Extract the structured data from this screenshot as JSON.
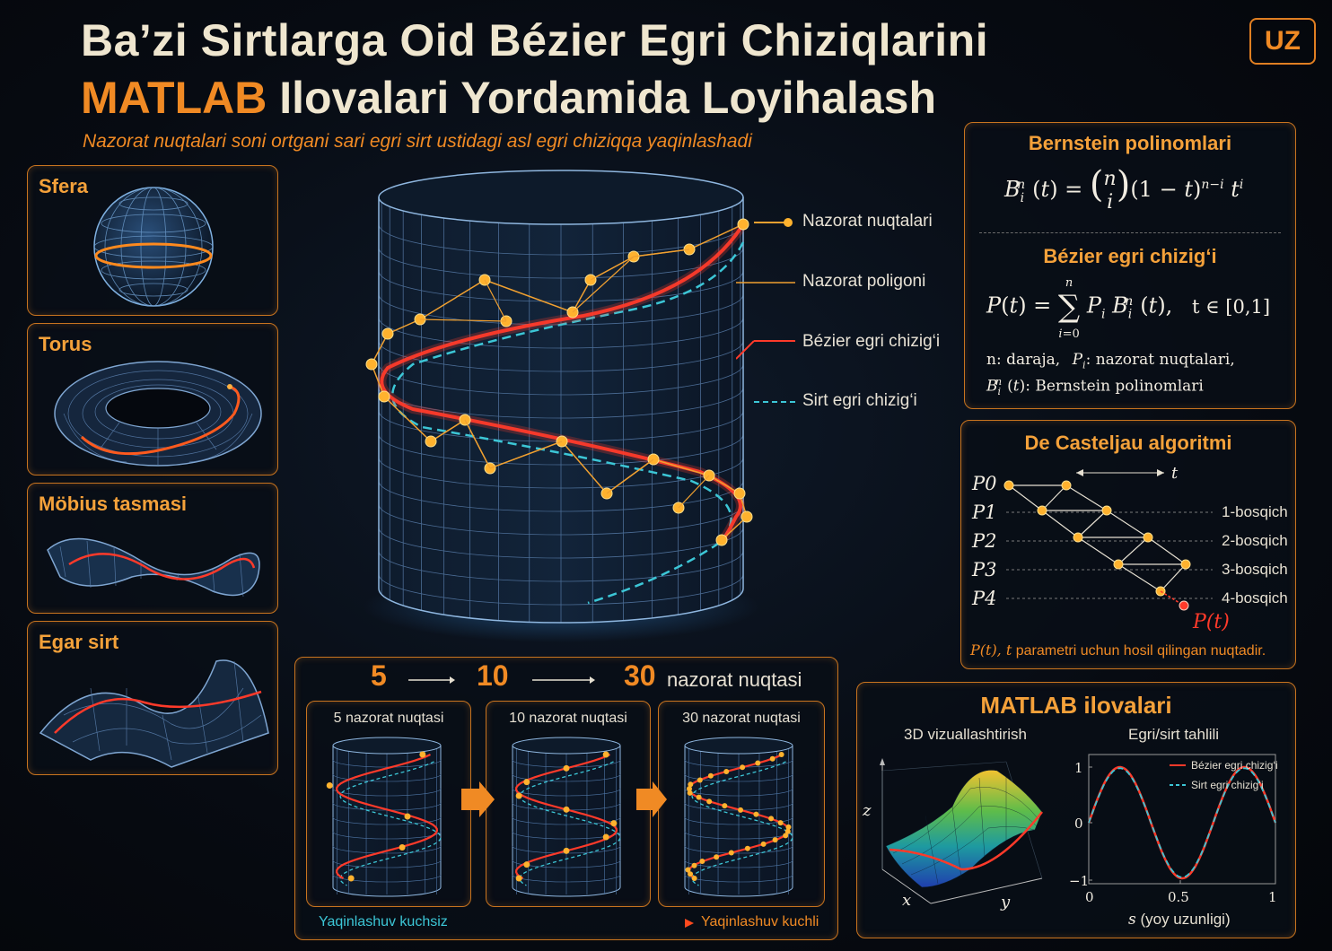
{
  "header": {
    "title_line1": "Ba’zi Sirtlarga Oid Bézier Egri Chiziqlarini",
    "title_line2_highlight": "MATLAB",
    "title_line2_rest": "Ilovalari Yordamida Loyihalash",
    "subtitle": "Nazorat nuqtalari soni ortgani sari egri sirt ustidagi asl egri chiziqqa yaqinlashadi",
    "lang_badge": "UZ"
  },
  "surfaces": [
    {
      "name": "Sfera",
      "icon": "sphere-icon"
    },
    {
      "name": "Torus",
      "icon": "torus-icon"
    },
    {
      "name": "Möbius tasmasi",
      "icon": "mobius-icon"
    },
    {
      "name": "Egar sirt",
      "icon": "saddle-icon"
    }
  ],
  "legend": {
    "control_points": "Nazorat nuqtalari",
    "control_polygon": "Nazorat poligoni",
    "bezier_curve": "Bézier egri chizig‘i",
    "surface_curve": "Sirt egri chizig‘i"
  },
  "bernstein": {
    "title": "Bernstein polinomlari",
    "bezier_title": "Bézier egri chizig‘i",
    "range": "t ∈ [0,1]",
    "note1_a": "n: daraja,",
    "note1_b": "P",
    "note1_c": ": nazorat nuqtalari,",
    "note2": ": Bernstein polinomlari"
  },
  "casteljau": {
    "title": "De Casteljau algoritmi",
    "t_label": "t",
    "points": [
      "P0",
      "P1",
      "P2",
      "P3",
      "P4"
    ],
    "stages": [
      "1-bosqich",
      "2-bosqich",
      "3-bosqich",
      "4-bosqich"
    ],
    "result": "P(t)",
    "caption_math": "P(t), t",
    "caption_text": "parametri uchun hosil qilingan nuqtadir."
  },
  "progression": {
    "steps": [
      "5",
      "10",
      "30"
    ],
    "suffix": "nazorat nuqtasi",
    "cards": [
      "5 nazorat nuqtasi",
      "10 nazorat nuqtasi",
      "30 nazorat nuqtasi"
    ],
    "weak": "Yaqinlashuv kuchsiz",
    "strong": "Yaqinlashuv kuchli"
  },
  "matlab": {
    "title": "MATLAB ilovalari",
    "left_title": "3D vizuallashtirish",
    "right_title": "Egri/sirt tahlili",
    "axis_x": "x",
    "axis_y": "y",
    "axis_z": "z",
    "xlabel_var": "s",
    "xlabel_text": "(yoy uzunligi)",
    "yticks": [
      "1",
      "0",
      "−1"
    ],
    "xticks": [
      "0",
      "0.5",
      "1"
    ],
    "legend": [
      "Bézier egri chizig‘i",
      "Sirt egri chizig‘i"
    ]
  },
  "colors": {
    "accent": "#f08a24",
    "bezier": "#ff3a2a",
    "surface_curve": "#3cc6d6",
    "grid": "#5f86b6"
  }
}
